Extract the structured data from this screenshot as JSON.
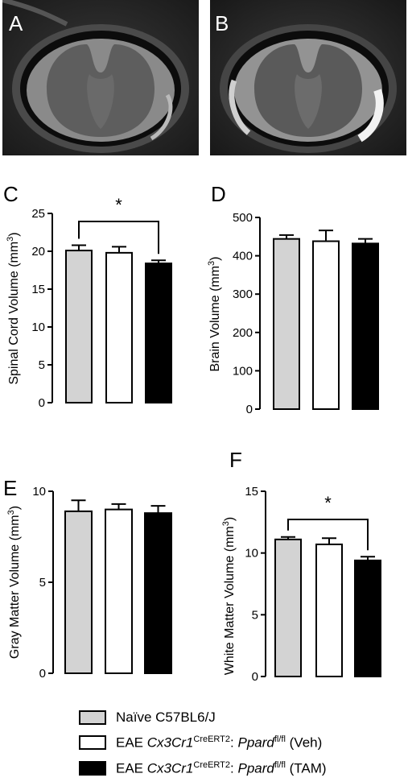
{
  "panels": {
    "a": {
      "letter": "A"
    },
    "b": {
      "letter": "B"
    }
  },
  "chart_data": [
    {
      "letter": "C",
      "type": "bar",
      "categories": [
        "Naïve C57BL6/J",
        "EAE Cx3Cr1CreERT2: Ppardfl/fl (Veh)",
        "EAE Cx3Cr1CreERT2: Ppardfl/fl (TAM)"
      ],
      "values": [
        20.1,
        19.8,
        18.4
      ],
      "errors": [
        0.7,
        0.8,
        0.4
      ],
      "ylabel": "Spinal Cord Volume (mm",
      "ylabel_sup": "3",
      "ylim": [
        0,
        25
      ],
      "yticks": [
        "0",
        "5",
        "10",
        "15",
        "20",
        "25"
      ],
      "significance": {
        "from": 0,
        "to": 2,
        "label": "*"
      }
    },
    {
      "letter": "D",
      "type": "bar",
      "categories": [
        "Naïve C57BL6/J",
        "EAE Cx3Cr1CreERT2: Ppardfl/fl (Veh)",
        "EAE Cx3Cr1CreERT2: Ppardfl/fl (TAM)"
      ],
      "values": [
        444,
        438,
        432
      ],
      "errors": [
        10,
        28,
        12
      ],
      "ylabel": "Brain Volume (mm",
      "ylabel_sup": "3",
      "ylim": [
        0,
        500
      ],
      "yticks": [
        "0",
        "100",
        "200",
        "300",
        "400",
        "500"
      ]
    },
    {
      "letter": "E",
      "type": "bar",
      "categories": [
        "Naïve C57BL6/J",
        "EAE Cx3Cr1CreERT2: Ppardfl/fl (Veh)",
        "EAE Cx3Cr1CreERT2: Ppardfl/fl (TAM)"
      ],
      "values": [
        8.9,
        9.0,
        8.8
      ],
      "errors": [
        0.6,
        0.3,
        0.4
      ],
      "ylabel": "Gray Matter Volume  (mm",
      "ylabel_sup": "3",
      "ylim": [
        0,
        10
      ],
      "yticks": [
        "0",
        "5",
        "10"
      ]
    },
    {
      "letter": "F",
      "type": "bar",
      "categories": [
        "Naïve C57BL6/J",
        "EAE Cx3Cr1CreERT2: Ppardfl/fl (Veh)",
        "EAE Cx3Cr1CreERT2: Ppardfl/fl (TAM)"
      ],
      "values": [
        11.1,
        10.7,
        9.4
      ],
      "errors": [
        0.2,
        0.5,
        0.3
      ],
      "ylabel": "White Matter Volume (mm",
      "ylabel_sup": "3",
      "ylim": [
        0,
        15
      ],
      "yticks": [
        "0",
        "5",
        "10",
        "15"
      ],
      "significance": {
        "from": 0,
        "to": 2,
        "label": "*"
      }
    }
  ],
  "legend": {
    "items": [
      {
        "pre": "Naïve C57BL6/J",
        "color": "#d3d3d3"
      },
      {
        "pre": "EAE ",
        "gene": "Cx3Cr1",
        "gene_sup": "CreERT2",
        "colon": ": ",
        "gene2": "Ppard",
        "gene2_sup": "fl/fl",
        "post": " (Veh)",
        "color": "#ffffff"
      },
      {
        "pre": "EAE ",
        "gene": "Cx3Cr1",
        "gene_sup": "CreERT2",
        "colon": ": ",
        "gene2": "Ppard",
        "gene2_sup": "fl/fl",
        "post": " (TAM)",
        "color": "#000000"
      }
    ]
  },
  "colors": {
    "naive": "#d3d3d3",
    "veh": "#ffffff",
    "tam": "#000000"
  }
}
